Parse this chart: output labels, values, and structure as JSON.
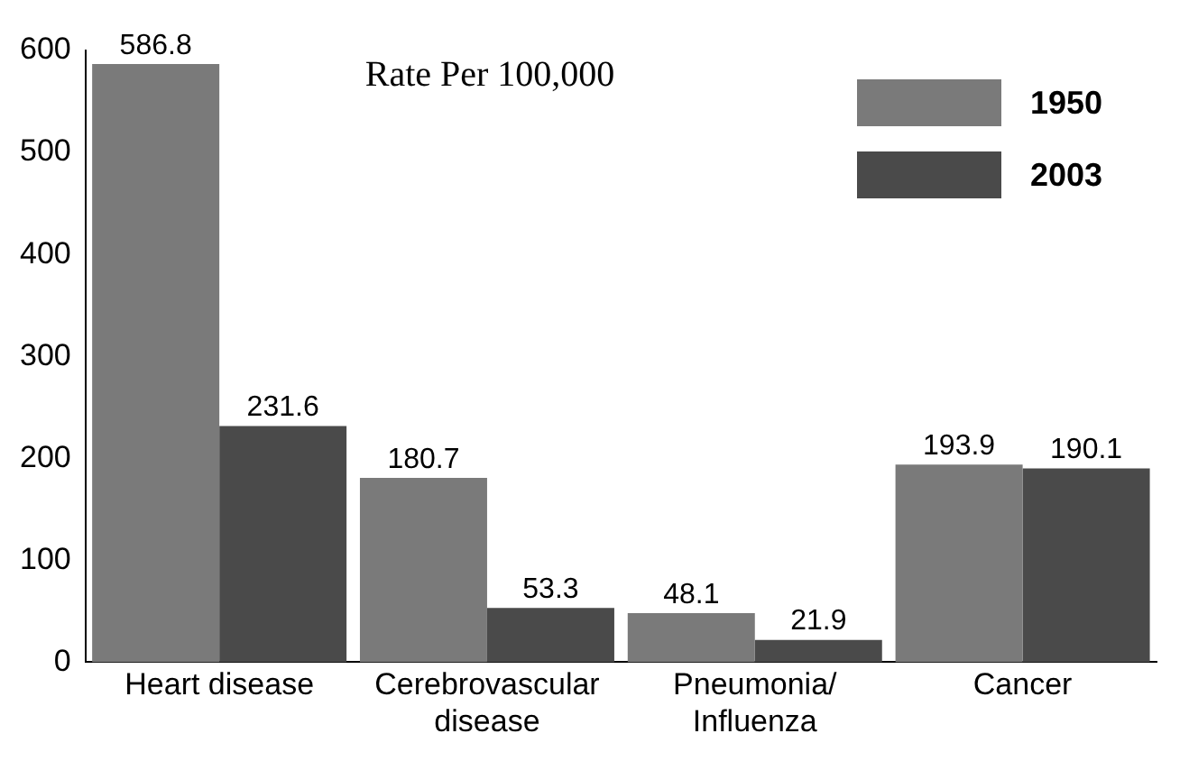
{
  "chart_data": {
    "type": "bar",
    "title": "Rate Per 100,000",
    "categories": [
      "Heart disease",
      "Cerebrovascular\ndisease",
      "Pneumonia/\nInfluenza",
      "Cancer"
    ],
    "series": [
      {
        "name": "1950",
        "color": "#7a7a7a",
        "values": [
          586.8,
          180.7,
          48.1,
          193.9
        ]
      },
      {
        "name": "2003",
        "color": "#4a4a4a",
        "values": [
          231.6,
          53.3,
          21.9,
          190.1
        ]
      }
    ],
    "ylim": [
      0,
      600
    ],
    "yticks": [
      0,
      100,
      200,
      300,
      400,
      500,
      600
    ],
    "grid": false,
    "legend": "top right",
    "data_labels": true
  }
}
